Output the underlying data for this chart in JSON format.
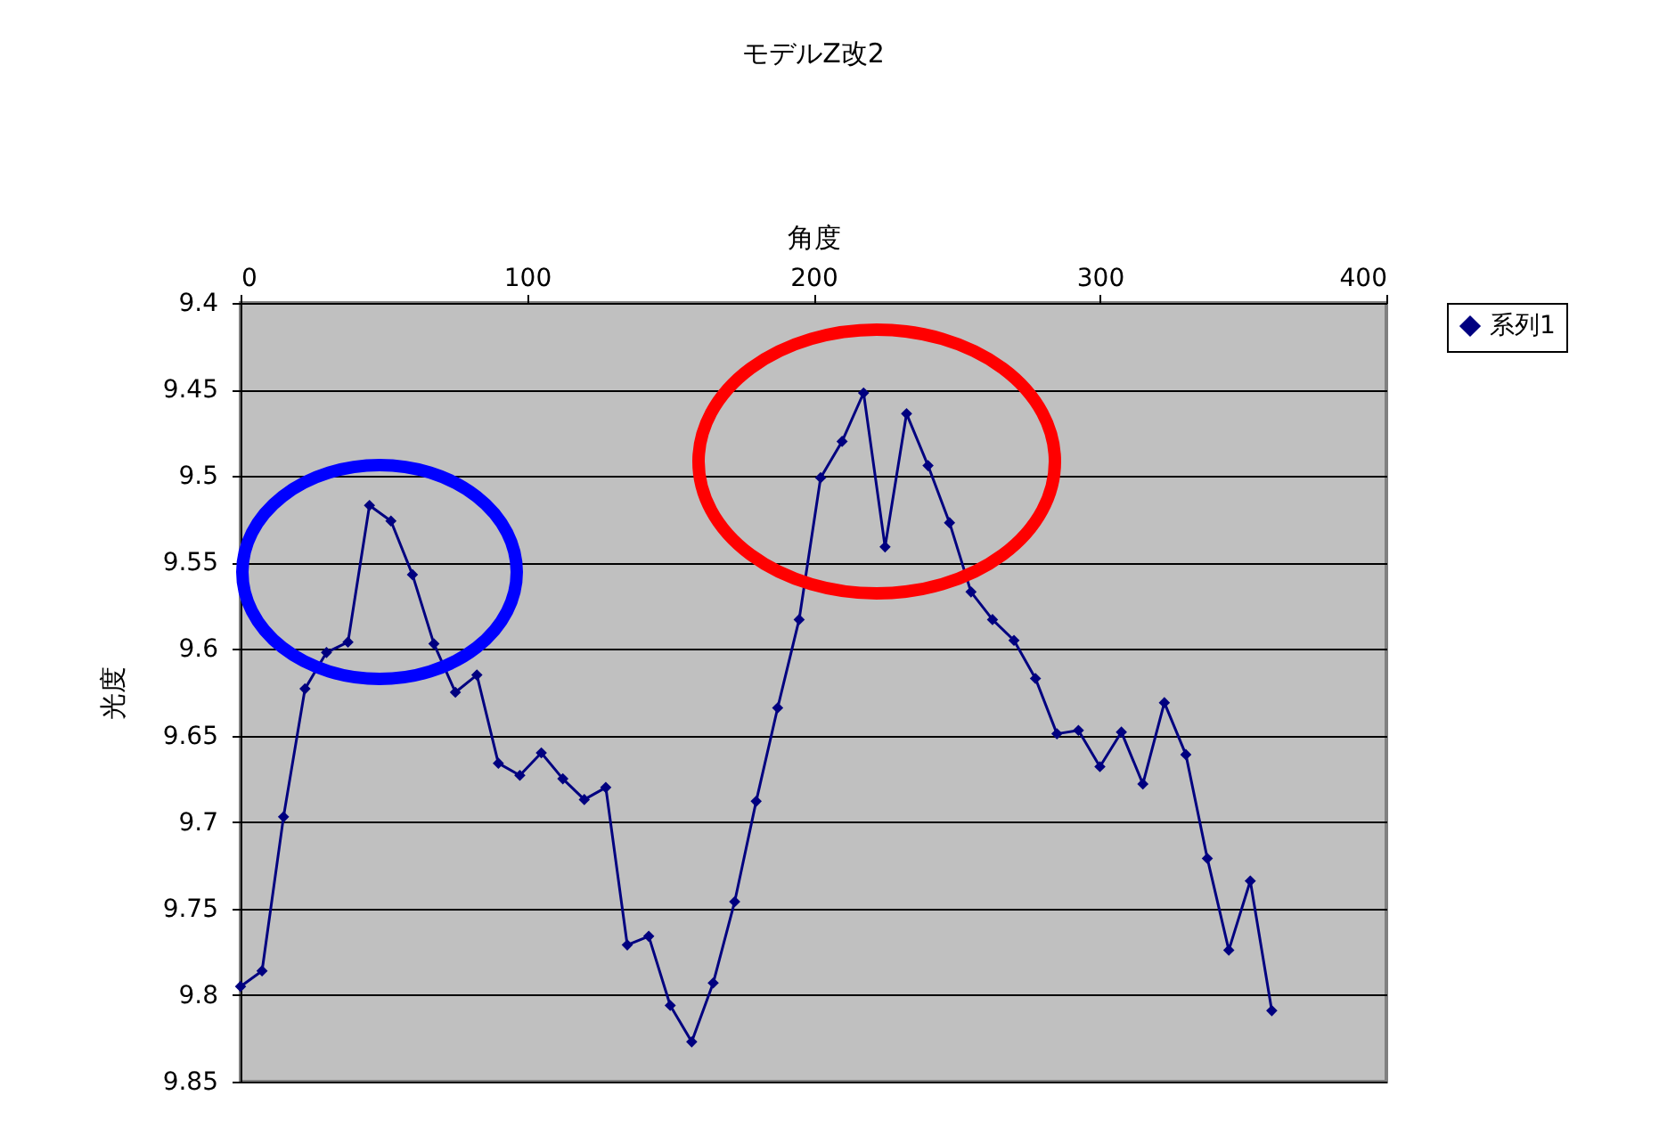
{
  "chart_data": {
    "type": "line",
    "title": "モデルZ改2",
    "xlabel": "角度",
    "ylabel": "光度",
    "x": [
      0,
      7.5,
      15,
      22.5,
      30,
      37.5,
      45,
      52.5,
      60,
      67.5,
      75,
      82.5,
      90,
      97.5,
      105,
      112.5,
      120,
      127.5,
      135,
      142.5,
      150,
      157.5,
      165,
      172.5,
      180,
      187.5,
      195,
      202.5,
      210,
      217.5,
      225,
      232.5,
      240,
      247.5,
      255,
      262.5,
      270,
      277.5,
      285,
      292.5,
      300,
      307.5,
      315,
      322.5,
      330,
      337.5,
      345,
      352.5,
      360
    ],
    "series": [
      {
        "name": "系列1",
        "color": "#000080",
        "values": [
          9.795,
          9.786,
          9.697,
          9.623,
          9.602,
          9.596,
          9.517,
          9.526,
          9.557,
          9.597,
          9.625,
          9.615,
          9.666,
          9.673,
          9.66,
          9.675,
          9.687,
          9.68,
          9.771,
          9.766,
          9.806,
          9.827,
          9.793,
          9.746,
          9.688,
          9.634,
          9.583,
          9.501,
          9.48,
          9.452,
          9.541,
          9.464,
          9.494,
          9.527,
          9.567,
          9.583,
          9.595,
          9.617,
          9.649,
          9.647,
          9.668,
          9.648,
          9.678,
          9.631,
          9.661,
          9.721,
          9.774,
          9.734,
          9.809
        ]
      }
    ],
    "xlim": [
      0,
      400
    ],
    "xticks": [
      0,
      100,
      200,
      300,
      400
    ],
    "ylim": [
      9.85,
      9.4
    ],
    "yticks": [
      9.4,
      9.45,
      9.5,
      9.55,
      9.6,
      9.65,
      9.7,
      9.75,
      9.8,
      9.85
    ],
    "grid": "y",
    "legend": "right",
    "marker": "diamond",
    "line_style": "solid"
  }
}
